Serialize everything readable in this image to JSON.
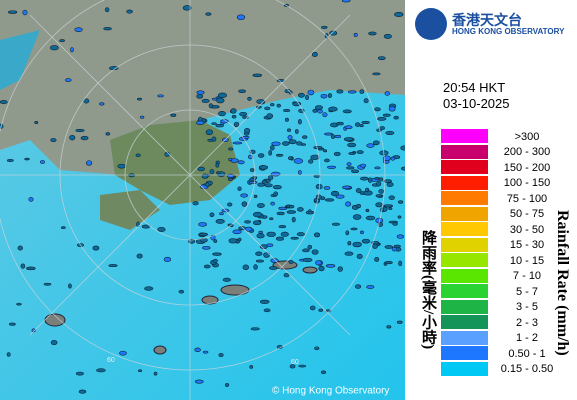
{
  "header": {
    "logo_chinese": "香港天文台",
    "logo_english": "HONG KONG OBSERVATORY"
  },
  "time": "20:54 HKT",
  "date": "03-10-2025",
  "legend": {
    "title_chinese": "降雨率(毫米/小時)",
    "title_english": "Rainfall Rate (mm/h)",
    "items": [
      {
        "label": ">300",
        "color": "#ff00ff"
      },
      {
        "label": "200 - 300",
        "color": "#c8006e"
      },
      {
        "label": "150 - 200",
        "color": "#e0001e"
      },
      {
        "label": "100 - 150",
        "color": "#ff1e00"
      },
      {
        "label": "75 - 100",
        "color": "#ff7a00"
      },
      {
        "label": "50 - 75",
        "color": "#f0a400"
      },
      {
        "label": "30 - 50",
        "color": "#ffc800"
      },
      {
        "label": "15 - 30",
        "color": "#e0d200"
      },
      {
        "label": "10 - 15",
        "color": "#96e600"
      },
      {
        "label": "7 - 10",
        "color": "#5ae600"
      },
      {
        "label": "5 - 7",
        "color": "#2ad232"
      },
      {
        "label": "3 - 5",
        "color": "#1eb446"
      },
      {
        "label": "2 - 3",
        "color": "#15945a"
      },
      {
        "label": "1 - 2",
        "color": "#5aa0ff"
      },
      {
        "label": "0.50 - 1",
        "color": "#1e78ff"
      },
      {
        "label": "0.15 - 0.50",
        "color": "#00c8f5"
      }
    ]
  },
  "map": {
    "ring_labels": [
      "60",
      "60"
    ],
    "copyright": "© Hong Kong Observatory"
  }
}
